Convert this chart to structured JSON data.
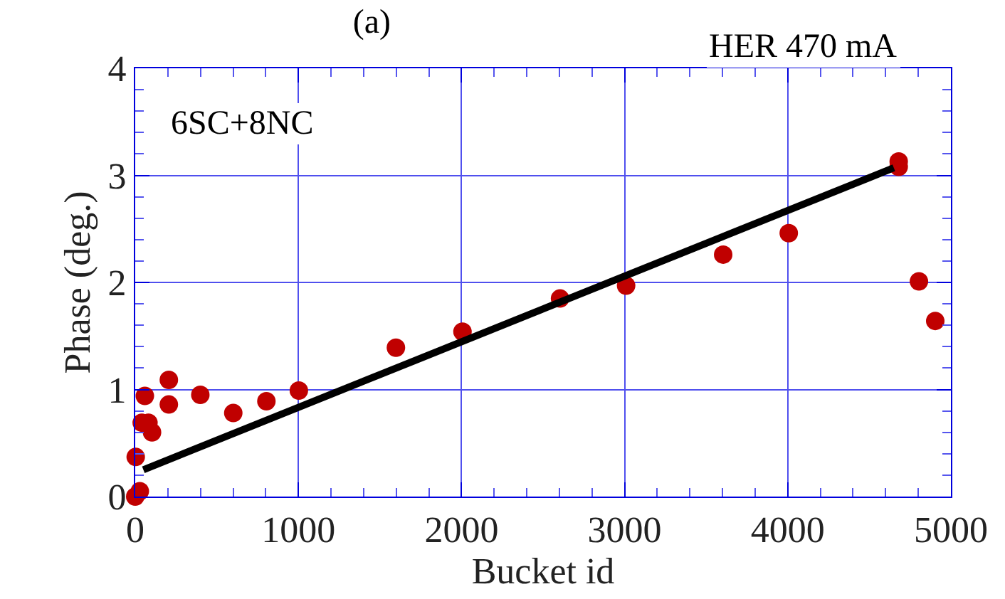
{
  "chart_data": {
    "type": "scatter",
    "title": "(a)",
    "xlabel": "Bucket id",
    "ylabel": "Phase (deg.)",
    "annotations": [
      "HER 470 mA",
      "6SC+8NC"
    ],
    "xlim": [
      0,
      5000
    ],
    "xticks": [
      0,
      1000,
      2000,
      3000,
      4000,
      5000
    ],
    "ylim": [
      0,
      4
    ],
    "yticks": [
      0,
      1,
      2,
      3,
      4
    ],
    "grid": true,
    "series": [
      {
        "color": "#c00000",
        "marker": "circle",
        "x": [
          0,
          28,
          3,
          59,
          206,
          206,
          40,
          81,
          103,
          399,
          601,
          804,
          1003,
          1598,
          2006,
          2604,
          3009,
          3604,
          4006,
          4680,
          4680,
          4804,
          4904
        ],
        "values": [
          0.0,
          0.05,
          0.37,
          0.94,
          1.09,
          0.86,
          0.69,
          0.69,
          0.6,
          0.95,
          0.78,
          0.89,
          0.99,
          1.39,
          1.54,
          1.85,
          1.97,
          2.26,
          2.46,
          3.08,
          3.13,
          2.01,
          1.64
        ]
      },
      {
        "type": "line",
        "color": "#000000",
        "line_style": "solid",
        "x": [
          50,
          4650
        ],
        "values": [
          0.25,
          3.07
        ]
      }
    ]
  }
}
